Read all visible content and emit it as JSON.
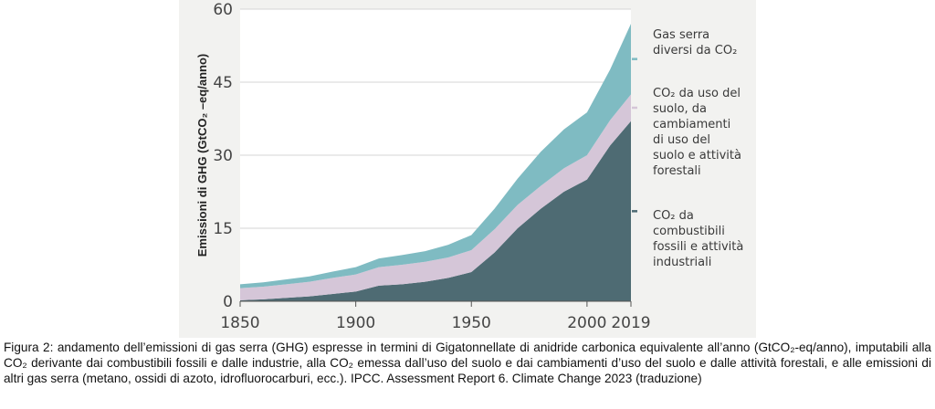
{
  "chart_data": {
    "type": "area",
    "stacked": true,
    "xlim": [
      1850,
      2019
    ],
    "ylim": [
      0,
      60
    ],
    "xticks": [
      "1850",
      "1900",
      "1950",
      "2000",
      "2019"
    ],
    "yticks": [
      "0",
      "15",
      "30",
      "45",
      "60"
    ],
    "ylabel": "Emissioni di GHG (GtCO₂ –eq/anno)",
    "x": [
      1850,
      1860,
      1870,
      1880,
      1890,
      1900,
      1910,
      1920,
      1930,
      1940,
      1950,
      1960,
      1970,
      1980,
      1990,
      2000,
      2010,
      2019
    ],
    "series": [
      {
        "name": "CO₂ da combustibili fossili e attività industriali",
        "color": "#4e6b73",
        "values": [
          0.2,
          0.4,
          0.7,
          1.0,
          1.5,
          2.0,
          3.2,
          3.5,
          4.0,
          4.8,
          6.0,
          10.0,
          15.0,
          19.0,
          22.5,
          25.0,
          32.0,
          37.0
        ]
      },
      {
        "name": "CO₂ da uso del suolo, da cambiamenti di uso del suolo e attività forestali",
        "color": "#d5c6d8",
        "values": [
          2.5,
          2.6,
          2.8,
          3.0,
          3.3,
          3.5,
          3.8,
          4.0,
          4.1,
          4.2,
          4.5,
          4.8,
          4.8,
          4.7,
          4.8,
          5.0,
          5.2,
          5.5
        ]
      },
      {
        "name": "Gas serra diversi da CO₂",
        "color": "#7fbbc2",
        "values": [
          0.8,
          0.9,
          1.0,
          1.1,
          1.3,
          1.5,
          1.8,
          2.0,
          2.2,
          2.6,
          3.1,
          4.2,
          5.4,
          7.0,
          8.0,
          8.8,
          10.4,
          14.5
        ]
      }
    ]
  },
  "legend": {
    "non_co2": [
      "Gas serra",
      "diversi da CO₂"
    ],
    "land_use": [
      "CO₂ da uso del",
      "suolo, da",
      "cambiamenti",
      "di uso del",
      "suolo e attività",
      "forestali"
    ],
    "fossil": [
      "CO₂ da",
      "combustibili",
      "fossili e attività",
      "industriali"
    ]
  },
  "caption": "Figura 2: andamento dell’emissioni di gas serra (GHG) espresse in termini di Gigatonnellate di anidride carbonica equivalente all’anno (GtCO₂-eq/anno), imputabili alla CO₂ derivante dai combustibili fossili e dalle industrie, alla CO₂ emessa dall’uso del suolo e dai cambiamenti d’uso del suolo e dalle attività forestali, e alle emissioni di altri gas serra (metano, ossidi di azoto, idrofluorocarburi, ecc.). IPCC. Assessment Report 6. Climate Change 2023 (traduzione)"
}
